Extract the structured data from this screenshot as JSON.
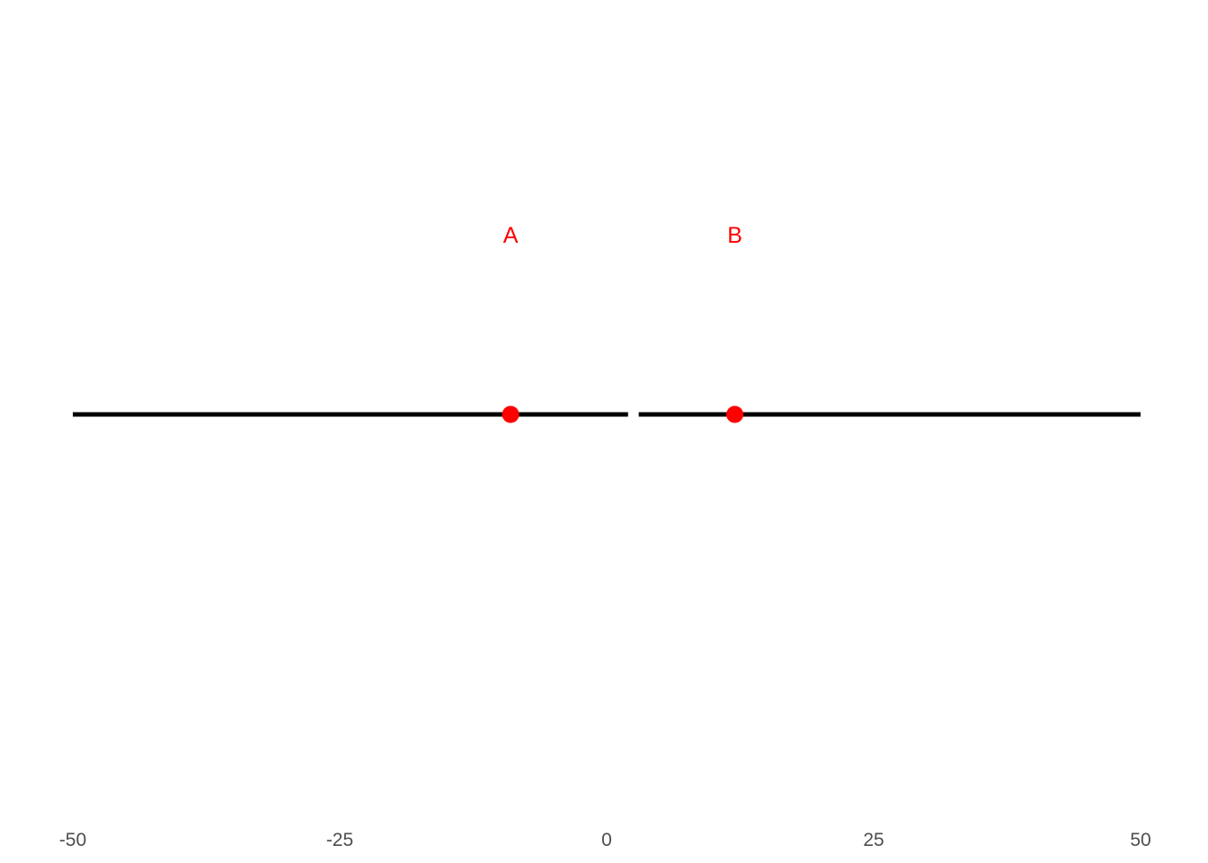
{
  "chart_data": {
    "type": "scatter",
    "title": "",
    "xlabel": "",
    "ylabel": "",
    "xlim": [
      -50,
      50
    ],
    "x_ticks": [
      -50,
      -25,
      0,
      25,
      50
    ],
    "x_tick_labels": [
      "-50",
      "-25",
      "0",
      "25",
      "50"
    ],
    "grid": false,
    "segments": [
      {
        "x": [
          -50,
          2
        ]
      },
      {
        "x": [
          3,
          50
        ]
      }
    ],
    "points": [
      {
        "label": "A",
        "x": -9
      },
      {
        "label": "B",
        "x": 12
      }
    ],
    "line_color": "#000000",
    "point_color": "#ff0000",
    "label_color": "#ff0000"
  }
}
